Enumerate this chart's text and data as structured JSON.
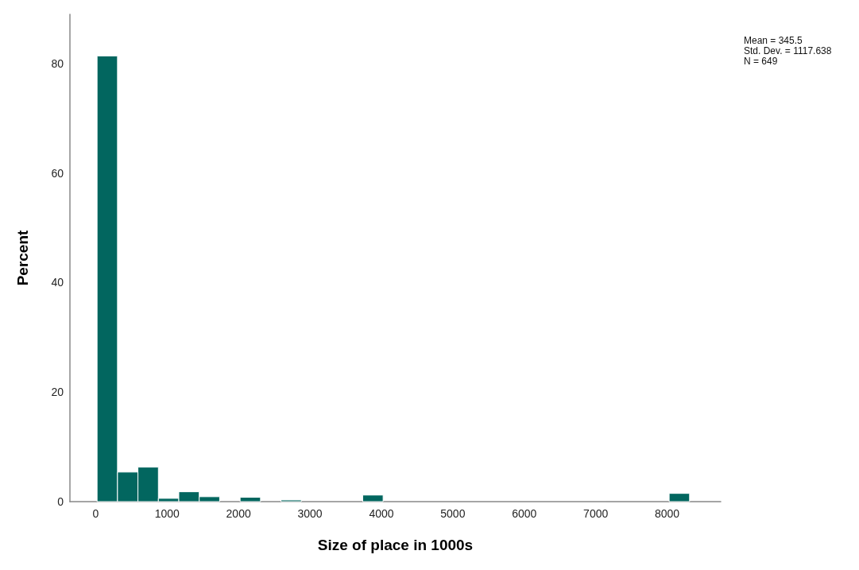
{
  "chart_data": {
    "type": "histogram",
    "xlabel": "Size of place in 1000s",
    "ylabel": "Percent",
    "bins": [
      20,
      306,
      592,
      878,
      1164,
      1450,
      1736,
      2022,
      2308,
      2594,
      2880,
      3166,
      3452,
      3738,
      4024,
      4310,
      4596,
      4882,
      5168,
      5454,
      5740,
      6026,
      6312,
      6598,
      6884,
      7170,
      7456,
      7742,
      8028,
      8314
    ],
    "values": [
      81.4,
      5.4,
      6.3,
      0.6,
      1.8,
      0.9,
      0,
      0.8,
      0,
      0.3,
      0,
      0,
      0,
      1.2,
      0,
      0,
      0,
      0,
      0,
      0,
      0,
      0,
      0,
      0,
      0,
      0,
      0,
      0,
      1.5
    ],
    "color": "#02665f",
    "xlim": [
      -360,
      8750
    ],
    "xticks": [
      0,
      1000,
      2000,
      3000,
      4000,
      5000,
      6000,
      7000,
      8000
    ],
    "ylim": [
      0,
      89
    ],
    "yticks": [
      0,
      20,
      40,
      60,
      80
    ],
    "grid": false,
    "annotations": [
      "Mean = 345.5",
      "Std. Dev. = 1117.638",
      "N = 649"
    ]
  }
}
